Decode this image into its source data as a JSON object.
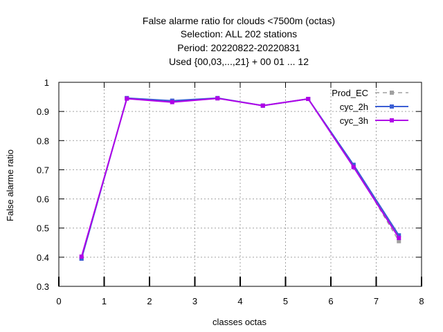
{
  "chart_data": {
    "type": "line",
    "title_lines": [
      "False alarme ratio  for clouds <7500m (octas)",
      "Selection: ALL    202 stations",
      "Period: 20220822-20220831",
      "Used {00,03,...,21} + 00 01 ... 12"
    ],
    "xlabel": "classes octas",
    "ylabel": "False alarme ratio",
    "xlim": [
      0,
      8
    ],
    "ylim": [
      0.3,
      1.0
    ],
    "x_ticks": [
      0,
      1,
      2,
      3,
      4,
      5,
      6,
      7,
      8
    ],
    "y_ticks": [
      0.3,
      0.4,
      0.5,
      0.6,
      0.7,
      0.8,
      0.9,
      1.0
    ],
    "x_tick_labels": [
      "0",
      "1",
      "2",
      "3",
      "4",
      "5",
      "6",
      "7",
      "8"
    ],
    "y_tick_labels": [
      "0.3",
      "0.4",
      "0.5",
      "0.6",
      "0.7",
      "0.8",
      "0.9",
      "1"
    ],
    "grid": true,
    "legend_position": "top-right",
    "series": [
      {
        "name": "Prod_EC",
        "color": "#a0a0a0",
        "dashed": true,
        "x": [
          0.5,
          1.5,
          2.5,
          3.5,
          4.5,
          5.5,
          6.5,
          7.5
        ],
        "values": [
          0.395,
          0.945,
          0.935,
          0.945,
          0.92,
          0.943,
          0.715,
          0.455
        ]
      },
      {
        "name": "cyc_2h",
        "color": "#3b5fd4",
        "dashed": false,
        "x": [
          0.5,
          1.5,
          2.5,
          3.5,
          4.5,
          5.5,
          6.5,
          7.5
        ],
        "values": [
          0.395,
          0.946,
          0.937,
          0.946,
          0.92,
          0.943,
          0.717,
          0.475
        ]
      },
      {
        "name": "cyc_3h",
        "color": "#b000e8",
        "dashed": false,
        "x": [
          0.5,
          1.5,
          2.5,
          3.5,
          4.5,
          5.5,
          6.5,
          7.5
        ],
        "values": [
          0.402,
          0.944,
          0.932,
          0.945,
          0.92,
          0.943,
          0.709,
          0.466
        ]
      }
    ]
  }
}
